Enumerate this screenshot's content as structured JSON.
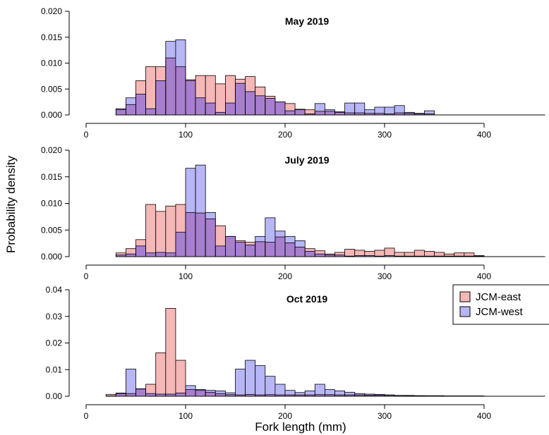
{
  "colors": {
    "east": "#f6b7b7",
    "west": "#b7b7f6",
    "overlap": "#a87fcf",
    "edge": "#000000"
  },
  "legend": {
    "placement": "right",
    "items": [
      "JCM-east",
      "JCM-west"
    ]
  },
  "xlabel": "Fork length (mm)",
  "ylabel": "Probability density",
  "chart_data": [
    {
      "type": "histogram",
      "title": "May 2019",
      "bin_width": 10,
      "x_start": 30,
      "xlim": [
        0,
        450
      ],
      "ylim": [
        0,
        0.02
      ],
      "xticks": [
        0,
        100,
        200,
        300,
        400
      ],
      "yticks": [
        0.0,
        0.005,
        0.01,
        0.015,
        0.02
      ],
      "ytick_labels": [
        "0.000",
        "0.005",
        "0.010",
        "0.015",
        "0.020"
      ],
      "series": [
        {
          "name": "JCM-east",
          "values": [
            0.001,
            0.002,
            0.0066,
            0.0093,
            0.0093,
            0.011,
            0.0093,
            0.0068,
            0.0076,
            0.0076,
            0.006,
            0.0076,
            0.0069,
            0.0074,
            0.0054,
            0.0036,
            0.0025,
            0.0022,
            0.0011,
            0.001,
            0.0007,
            0.0007,
            0.0006,
            0.0004,
            0.0004,
            0.0003,
            0.0003,
            0.0002,
            0.0004,
            0.0003,
            0.0003,
            0.0002
          ]
        },
        {
          "name": "JCM-west",
          "values": [
            0.0012,
            0.0033,
            0.004,
            0.0012,
            0.0066,
            0.0142,
            0.0145,
            0.0066,
            0.0033,
            0.0023,
            0.0005,
            0.0023,
            0.0061,
            0.0045,
            0.0037,
            0.0032,
            0.0025,
            0.0008,
            0.001,
            0.0002,
            0.0022,
            0.001,
            0.0005,
            0.0023,
            0.0023,
            0.001,
            0.0015,
            0.0015,
            0.0018,
            0.0005,
            0.0002,
            0.0008
          ]
        }
      ]
    },
    {
      "type": "histogram",
      "title": "July 2019",
      "bin_width": 10,
      "x_start": 30,
      "xlim": [
        0,
        450
      ],
      "ylim": [
        0,
        0.02
      ],
      "xticks": [
        0,
        100,
        200,
        300,
        400
      ],
      "yticks": [
        0.0,
        0.005,
        0.01,
        0.015,
        0.02
      ],
      "ytick_labels": [
        "0.000",
        "0.005",
        "0.010",
        "0.015",
        "0.020"
      ],
      "series": [
        {
          "name": "JCM-east",
          "values": [
            0.0007,
            0.0015,
            0.0032,
            0.0098,
            0.0085,
            0.0095,
            0.0098,
            0.0083,
            0.0082,
            0.0071,
            0.0058,
            0.0038,
            0.003,
            0.0027,
            0.0028,
            0.0027,
            0.0037,
            0.0026,
            0.0018,
            0.0015,
            0.0011,
            0.0005,
            0.0008,
            0.0014,
            0.0012,
            0.001,
            0.0012,
            0.0016,
            0.0008,
            0.0008,
            0.0012,
            0.001,
            0.0008,
            0.0005,
            0.0007,
            0.0007,
            0.0002
          ]
        },
        {
          "name": "JCM-west",
          "values": [
            0.0003,
            0.0005,
            0.002,
            0.0007,
            0.0008,
            0.0007,
            0.0046,
            0.0166,
            0.0172,
            0.0083,
            0.002,
            0.0038,
            0.0027,
            0.0022,
            0.0038,
            0.0073,
            0.0048,
            0.0038,
            0.003,
            0.001,
            0.0005,
            0.0003,
            0.0003,
            0.0001,
            0.0002,
            0.0002,
            0.0001,
            0.0002,
            0.0001,
            0.0001,
            0.0001,
            0.0001,
            0.0001,
            0.0001,
            0.0001,
            0.0001,
            0.0001
          ]
        }
      ]
    },
    {
      "type": "histogram",
      "title": "Oct 2019",
      "bin_width": 10,
      "x_start": 20,
      "xlim": [
        0,
        450
      ],
      "ylim": [
        0,
        0.04
      ],
      "xticks": [
        0,
        100,
        200,
        300,
        400
      ],
      "yticks": [
        0.0,
        0.01,
        0.02,
        0.03,
        0.04
      ],
      "ytick_labels": [
        "0.00",
        "0.01",
        "0.02",
        "0.03",
        "0.04"
      ],
      "series": [
        {
          "name": "JCM-east",
          "values": [
            0.0007,
            0.001,
            0.001,
            0.0027,
            0.0045,
            0.0163,
            0.033,
            0.0135,
            0.0025,
            0.0022,
            0.0015,
            0.001,
            0.0006,
            0.0005,
            0.0007,
            0.0005,
            0.0006,
            0.0005,
            0.0005,
            0.0005,
            0.0005,
            0.0006,
            0.0006,
            0.0005,
            0.0005,
            0.0005,
            0.0004,
            0.0004,
            0.0004,
            0.0003,
            0.0003,
            0.0002,
            0.0002,
            0.0002,
            0.0001,
            0.0001,
            0.0001,
            0.0001
          ]
        },
        {
          "name": "JCM-west",
          "values": [
            0.0001,
            0.0012,
            0.0102,
            0.0028,
            0.001,
            0.0008,
            0.0008,
            0.0012,
            0.004,
            0.0025,
            0.0022,
            0.002,
            0.0013,
            0.0102,
            0.0135,
            0.0115,
            0.0075,
            0.0045,
            0.0022,
            0.0014,
            0.002,
            0.0045,
            0.0025,
            0.002,
            0.0015,
            0.001,
            0.0008,
            0.0007,
            0.0005,
            0.0003,
            0.0002,
            0.0002,
            0.0001,
            0.0001,
            0.0001,
            0.0001,
            0.0001,
            0.0001
          ]
        }
      ]
    }
  ]
}
